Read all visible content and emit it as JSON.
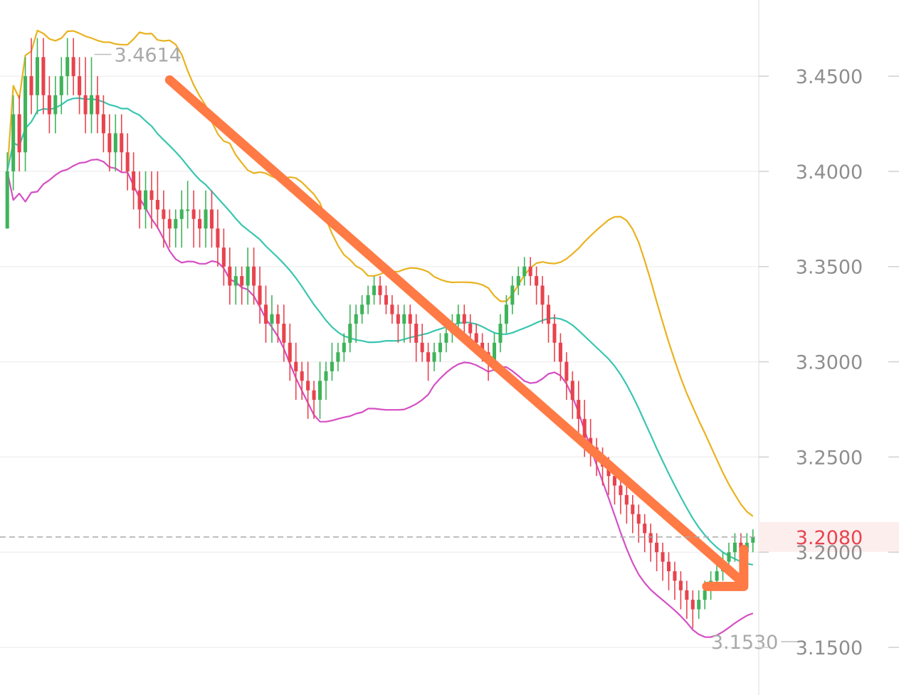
{
  "colors": {
    "background": "#ffffff",
    "grid": "#f0f0f0",
    "up": "#3fb35a",
    "down": "#e8434e",
    "upper_band": "#e9b21f",
    "middle_band": "#39c6b0",
    "lower_band": "#d54fc3",
    "trend_arrow": "#ff7a45",
    "current_price_text": "#e8434e",
    "current_price_bg": "#fdeeee",
    "tick_text": "#8e8e8e",
    "annotation_text": "#a9a9a9"
  },
  "chart_data": {
    "type": "candlestick",
    "ylim": [
      3.125,
      3.49
    ],
    "y_ticks": [
      "3.4500",
      "3.4000",
      "3.3500",
      "3.3000",
      "3.2500",
      "3.2000",
      "3.1500"
    ],
    "y_tick_values": [
      3.45,
      3.4,
      3.35,
      3.3,
      3.25,
      3.2,
      3.15
    ],
    "current_price": {
      "value": 3.208,
      "label": "3.2080"
    },
    "annotations": [
      {
        "label": "3.4614",
        "value": 3.4614,
        "bar_index": 14,
        "side": "right"
      },
      {
        "label": "3.1530",
        "value": 3.153,
        "bar_index": 132,
        "side": "left"
      }
    ],
    "trend_arrow": {
      "direction": "down",
      "from": {
        "bar_index": 27,
        "value": 3.448
      },
      "to": {
        "bar_index": 122,
        "value": 3.185
      }
    },
    "candles": [
      [
        3.37,
        3.4,
        3.37,
        3.41
      ],
      [
        3.4,
        3.43,
        3.39,
        3.44
      ],
      [
        3.43,
        3.41,
        3.4,
        3.44
      ],
      [
        3.41,
        3.45,
        3.4,
        3.46
      ],
      [
        3.45,
        3.44,
        3.43,
        3.47
      ],
      [
        3.44,
        3.46,
        3.43,
        3.47
      ],
      [
        3.46,
        3.44,
        3.43,
        3.47
      ],
      [
        3.44,
        3.43,
        3.42,
        3.45
      ],
      [
        3.43,
        3.44,
        3.42,
        3.45
      ],
      [
        3.44,
        3.45,
        3.43,
        3.46
      ],
      [
        3.45,
        3.46,
        3.44,
        3.47
      ],
      [
        3.46,
        3.45,
        3.44,
        3.47
      ],
      [
        3.45,
        3.44,
        3.43,
        3.46
      ],
      [
        3.44,
        3.43,
        3.42,
        3.46
      ],
      [
        3.43,
        3.44,
        3.42,
        3.46
      ],
      [
        3.44,
        3.43,
        3.42,
        3.45
      ],
      [
        3.43,
        3.42,
        3.41,
        3.44
      ],
      [
        3.42,
        3.41,
        3.4,
        3.43
      ],
      [
        3.41,
        3.42,
        3.4,
        3.43
      ],
      [
        3.42,
        3.41,
        3.4,
        3.43
      ],
      [
        3.41,
        3.4,
        3.39,
        3.42
      ],
      [
        3.4,
        3.39,
        3.38,
        3.41
      ],
      [
        3.39,
        3.38,
        3.37,
        3.4
      ],
      [
        3.38,
        3.39,
        3.37,
        3.4
      ],
      [
        3.39,
        3.385,
        3.37,
        3.4
      ],
      [
        3.385,
        3.38,
        3.37,
        3.4
      ],
      [
        3.38,
        3.375,
        3.36,
        3.39
      ],
      [
        3.375,
        3.37,
        3.36,
        3.38
      ],
      [
        3.37,
        3.375,
        3.36,
        3.38
      ],
      [
        3.375,
        3.38,
        3.36,
        3.39
      ],
      [
        3.38,
        3.38,
        3.37,
        3.395
      ],
      [
        3.38,
        3.375,
        3.36,
        3.39
      ],
      [
        3.375,
        3.37,
        3.36,
        3.38
      ],
      [
        3.37,
        3.38,
        3.36,
        3.39
      ],
      [
        3.38,
        3.37,
        3.36,
        3.39
      ],
      [
        3.37,
        3.36,
        3.35,
        3.38
      ],
      [
        3.36,
        3.35,
        3.34,
        3.37
      ],
      [
        3.35,
        3.34,
        3.33,
        3.36
      ],
      [
        3.34,
        3.345,
        3.33,
        3.35
      ],
      [
        3.345,
        3.34,
        3.33,
        3.35
      ],
      [
        3.34,
        3.35,
        3.33,
        3.36
      ],
      [
        3.35,
        3.34,
        3.33,
        3.36
      ],
      [
        3.34,
        3.33,
        3.32,
        3.35
      ],
      [
        3.33,
        3.32,
        3.31,
        3.34
      ],
      [
        3.32,
        3.325,
        3.31,
        3.335
      ],
      [
        3.325,
        3.32,
        3.31,
        3.33
      ],
      [
        3.32,
        3.31,
        3.3,
        3.33
      ],
      [
        3.31,
        3.3,
        3.29,
        3.32
      ],
      [
        3.3,
        3.295,
        3.28,
        3.31
      ],
      [
        3.295,
        3.29,
        3.28,
        3.3
      ],
      [
        3.29,
        3.285,
        3.27,
        3.3
      ],
      [
        3.285,
        3.28,
        3.27,
        3.29
      ],
      [
        3.28,
        3.29,
        3.27,
        3.3
      ],
      [
        3.29,
        3.295,
        3.28,
        3.3
      ],
      [
        3.295,
        3.3,
        3.29,
        3.31
      ],
      [
        3.3,
        3.305,
        3.295,
        3.31
      ],
      [
        3.305,
        3.31,
        3.3,
        3.315
      ],
      [
        3.31,
        3.32,
        3.305,
        3.33
      ],
      [
        3.32,
        3.325,
        3.31,
        3.33
      ],
      [
        3.325,
        3.33,
        3.32,
        3.335
      ],
      [
        3.33,
        3.335,
        3.325,
        3.34
      ],
      [
        3.335,
        3.34,
        3.33,
        3.345
      ],
      [
        3.34,
        3.335,
        3.33,
        3.345
      ],
      [
        3.335,
        3.33,
        3.325,
        3.34
      ],
      [
        3.33,
        3.325,
        3.32,
        3.335
      ],
      [
        3.325,
        3.32,
        3.31,
        3.33
      ],
      [
        3.32,
        3.325,
        3.31,
        3.33
      ],
      [
        3.325,
        3.32,
        3.31,
        3.33
      ],
      [
        3.32,
        3.31,
        3.3,
        3.325
      ],
      [
        3.31,
        3.305,
        3.3,
        3.32
      ],
      [
        3.305,
        3.3,
        3.29,
        3.31
      ],
      [
        3.3,
        3.305,
        3.295,
        3.31
      ],
      [
        3.305,
        3.31,
        3.3,
        3.315
      ],
      [
        3.31,
        3.315,
        3.305,
        3.32
      ],
      [
        3.315,
        3.32,
        3.31,
        3.325
      ],
      [
        3.32,
        3.325,
        3.315,
        3.33
      ],
      [
        3.325,
        3.32,
        3.315,
        3.33
      ],
      [
        3.32,
        3.315,
        3.31,
        3.325
      ],
      [
        3.315,
        3.31,
        3.305,
        3.32
      ],
      [
        3.31,
        3.305,
        3.3,
        3.315
      ],
      [
        3.305,
        3.3,
        3.29,
        3.31
      ],
      [
        3.3,
        3.31,
        3.295,
        3.315
      ],
      [
        3.31,
        3.32,
        3.305,
        3.325
      ],
      [
        3.32,
        3.33,
        3.315,
        3.335
      ],
      [
        3.33,
        3.34,
        3.325,
        3.345
      ],
      [
        3.34,
        3.345,
        3.335,
        3.35
      ],
      [
        3.345,
        3.35,
        3.34,
        3.355
      ],
      [
        3.35,
        3.345,
        3.34,
        3.355
      ],
      [
        3.345,
        3.34,
        3.33,
        3.35
      ],
      [
        3.34,
        3.33,
        3.32,
        3.345
      ],
      [
        3.33,
        3.32,
        3.31,
        3.335
      ],
      [
        3.32,
        3.31,
        3.3,
        3.325
      ],
      [
        3.31,
        3.3,
        3.29,
        3.315
      ],
      [
        3.3,
        3.29,
        3.28,
        3.305
      ],
      [
        3.29,
        3.28,
        3.27,
        3.295
      ],
      [
        3.28,
        3.27,
        3.26,
        3.29
      ],
      [
        3.27,
        3.26,
        3.25,
        3.28
      ],
      [
        3.26,
        3.255,
        3.245,
        3.27
      ],
      [
        3.255,
        3.25,
        3.24,
        3.26
      ],
      [
        3.25,
        3.245,
        3.235,
        3.255
      ],
      [
        3.245,
        3.24,
        3.23,
        3.25
      ],
      [
        3.24,
        3.235,
        3.225,
        3.245
      ],
      [
        3.235,
        3.23,
        3.22,
        3.24
      ],
      [
        3.23,
        3.225,
        3.215,
        3.235
      ],
      [
        3.225,
        3.22,
        3.21,
        3.23
      ],
      [
        3.22,
        3.215,
        3.205,
        3.225
      ],
      [
        3.215,
        3.21,
        3.2,
        3.22
      ],
      [
        3.21,
        3.205,
        3.195,
        3.215
      ],
      [
        3.205,
        3.2,
        3.19,
        3.21
      ],
      [
        3.2,
        3.195,
        3.185,
        3.205
      ],
      [
        3.195,
        3.19,
        3.18,
        3.2
      ],
      [
        3.19,
        3.185,
        3.175,
        3.195
      ],
      [
        3.185,
        3.18,
        3.17,
        3.19
      ],
      [
        3.18,
        3.175,
        3.165,
        3.185
      ],
      [
        3.175,
        3.17,
        3.16,
        3.18
      ],
      [
        3.17,
        3.175,
        3.165,
        3.18
      ],
      [
        3.175,
        3.18,
        3.17,
        3.185
      ],
      [
        3.18,
        3.185,
        3.175,
        3.19
      ],
      [
        3.185,
        3.19,
        3.18,
        3.195
      ],
      [
        3.19,
        3.195,
        3.185,
        3.2
      ],
      [
        3.195,
        3.2,
        3.19,
        3.205
      ],
      [
        3.2,
        3.205,
        3.195,
        3.21
      ],
      [
        3.205,
        3.2,
        3.195,
        3.21
      ],
      [
        3.2,
        3.205,
        3.195,
        3.21
      ],
      [
        3.205,
        3.208,
        3.2,
        3.212
      ]
    ]
  }
}
